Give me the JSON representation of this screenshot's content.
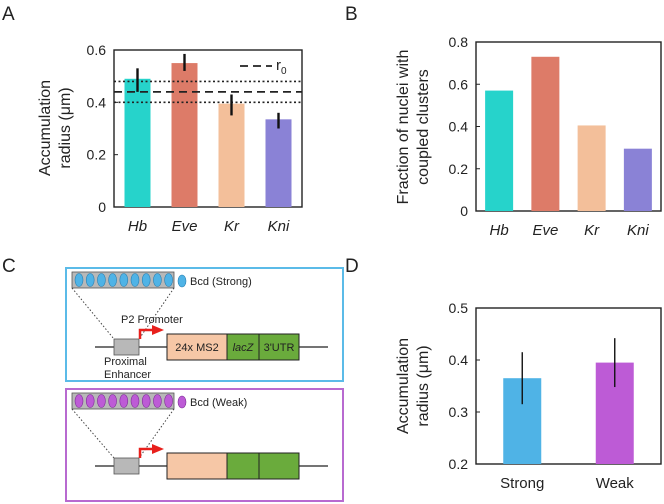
{
  "panels": {
    "a": "A",
    "b": "B",
    "c": "C",
    "d": "D"
  },
  "colors": {
    "hb": "#26d3cb",
    "eve": "#dd7b68",
    "kr": "#f3bf9a",
    "kni": "#8a82d6",
    "strong": "#4fb3e6",
    "weak": "#bd5bd6",
    "box_strong": "#5bbbe8",
    "box_weak": "#b86ad0",
    "ms2": "#f6c7a6",
    "green": "#6aab3c",
    "grey": "#b8b8b8",
    "arrow": "#e8201c"
  },
  "chart_data": [
    {
      "id": "A",
      "type": "bar",
      "categories": [
        "Hb",
        "Eve",
        "Kr",
        "Kni"
      ],
      "values": [
        0.49,
        0.55,
        0.395,
        0.335
      ],
      "error_low": [
        0.44,
        0.52,
        0.35,
        0.3
      ],
      "error_high": [
        0.53,
        0.585,
        0.43,
        0.36
      ],
      "ylabel_line1": "Accumulation",
      "ylabel_line2": "radius (μm)",
      "ylim": [
        0,
        0.6
      ],
      "yticks": [
        "0",
        "0.2",
        "0.4",
        "0.6"
      ],
      "ref_lines": {
        "r0": 0.44,
        "r0_low": 0.4,
        "r0_high": 0.48
      },
      "legend": {
        "label": "r",
        "sub": "0"
      }
    },
    {
      "id": "B",
      "type": "bar",
      "categories": [
        "Hb",
        "Eve",
        "Kr",
        "Kni"
      ],
      "values": [
        0.57,
        0.73,
        0.405,
        0.295
      ],
      "ylabel_line1": "Fraction of nuclei with",
      "ylabel_line2": "coupled clusters",
      "ylim": [
        0,
        0.8
      ],
      "yticks": [
        "0",
        "0.2",
        "0.4",
        "0.6",
        "0.8"
      ]
    },
    {
      "id": "D",
      "type": "bar",
      "categories": [
        "Strong",
        "Weak"
      ],
      "values": [
        0.365,
        0.395
      ],
      "error_low": [
        0.315,
        0.348
      ],
      "error_high": [
        0.415,
        0.442
      ],
      "ylabel_line1": "Accumulation",
      "ylabel_line2": "radius (μm)",
      "ylim": [
        0.2,
        0.5
      ],
      "yticks": [
        "0.2",
        "0.3",
        "0.4",
        "0.5"
      ]
    }
  ],
  "diagram": {
    "strong_label": "Bcd (Strong)",
    "weak_label": "Bcd (Weak)",
    "promoter": "P2 Promoter",
    "enhancer_line1": "Proximal",
    "enhancer_line2": "Enhancer",
    "ms2": "24x MS2",
    "lacz": "lacZ",
    "utr": "3'UTR"
  }
}
